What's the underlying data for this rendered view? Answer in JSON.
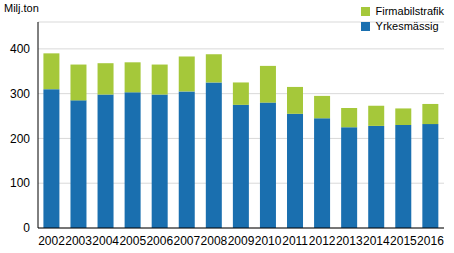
{
  "chart_data": {
    "type": "bar",
    "stacked": true,
    "y_label": "Milj.ton",
    "categories": [
      "2002",
      "2003",
      "2004",
      "2005",
      "2006",
      "2007",
      "2008",
      "2009",
      "2010",
      "2011",
      "2012",
      "2013",
      "2014",
      "2015",
      "2016"
    ],
    "series": [
      {
        "name": "Yrkesmässig",
        "color": "#1a6faf",
        "values": [
          310,
          285,
          298,
          303,
          298,
          305,
          325,
          275,
          280,
          255,
          245,
          225,
          228,
          230,
          232
        ]
      },
      {
        "name": "Firmabilstrafik",
        "color": "#a5c83a",
        "values": [
          80,
          80,
          70,
          67,
          67,
          78,
          63,
          50,
          82,
          60,
          50,
          43,
          45,
          37,
          45
        ]
      }
    ],
    "ylim": [
      0,
      460
    ],
    "yticks": [
      0,
      100,
      200,
      300,
      400
    ],
    "grid": true,
    "legend": "top-right"
  }
}
